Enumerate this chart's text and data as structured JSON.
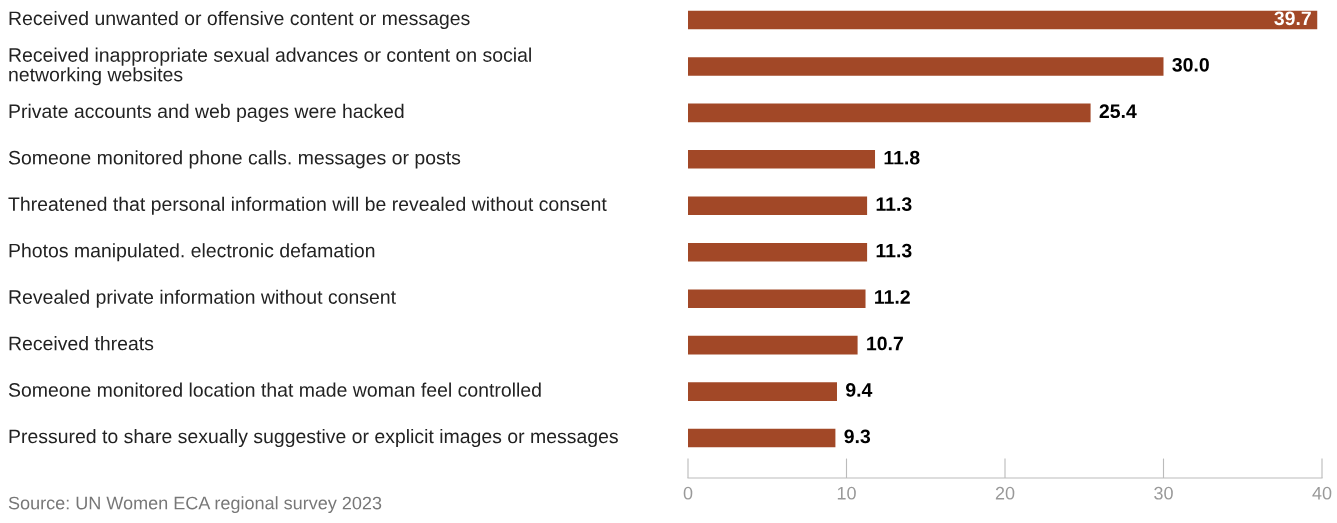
{
  "chart_data": {
    "type": "bar",
    "orientation": "horizontal",
    "categories": [
      "Received unwanted or offensive content or messages",
      "Received inappropriate sexual advances or content on social\nnetworking websites",
      "Private accounts and web pages were hacked",
      "Someone monitored phone calls. messages or posts",
      "Threatened that personal information will be revealed without consent",
      "Photos manipulated. electronic defamation",
      "Revealed private information without consent",
      "Received threats",
      "Someone monitored location that made woman feel controlled",
      "Pressured to share sexually suggestive or explicit images or messages"
    ],
    "values": [
      39.7,
      30.0,
      25.4,
      11.8,
      11.3,
      11.3,
      11.2,
      10.7,
      9.4,
      9.3
    ],
    "value_labels": [
      "39.7",
      "30.0",
      "25.4",
      "11.8",
      "11.3",
      "11.3",
      "11.2",
      "10.7",
      "9.4",
      "9.3"
    ],
    "color": "#a24827",
    "xlim": [
      0,
      40
    ],
    "xticks": [
      0,
      10,
      20,
      30,
      40
    ],
    "grid": false,
    "legend": false,
    "annotations": [
      "Source: UN Women ECA regional survey 2023"
    ]
  }
}
